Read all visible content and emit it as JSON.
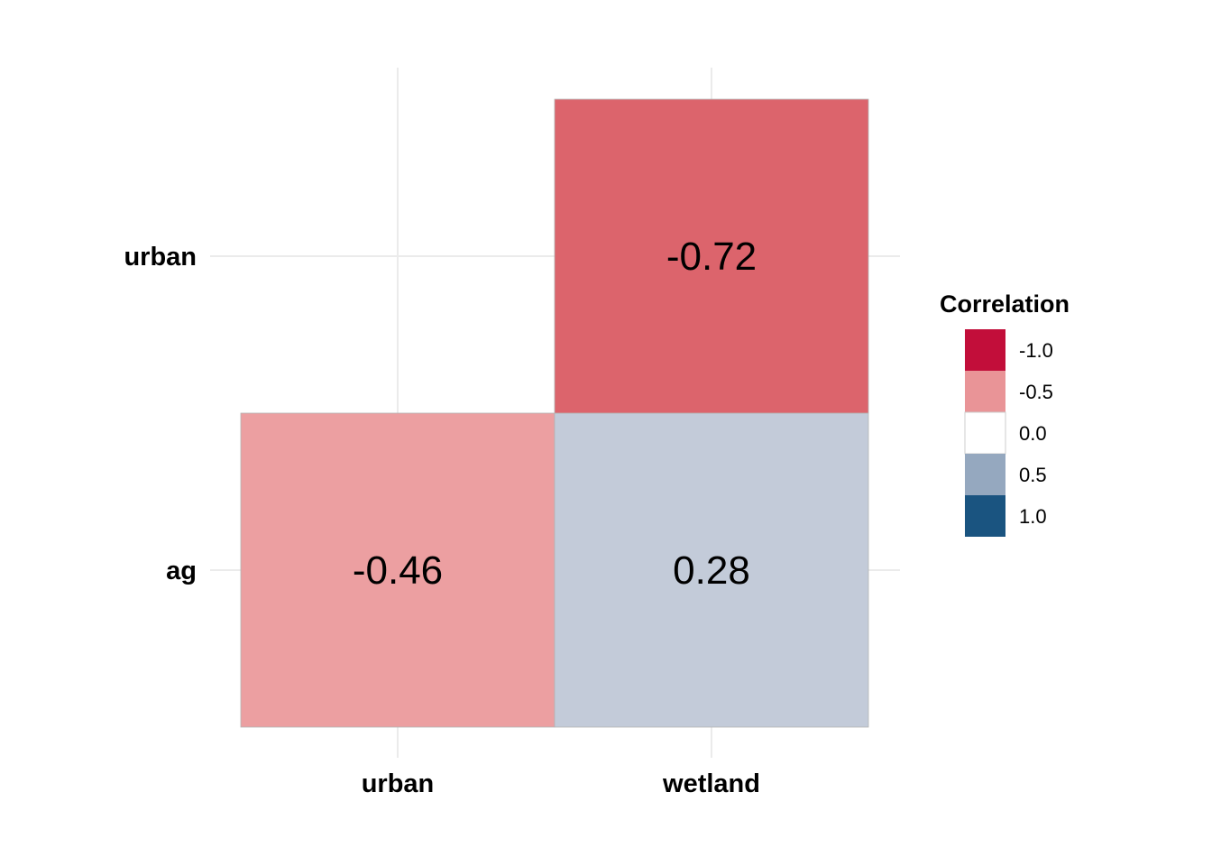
{
  "chart_data": {
    "type": "heatmap",
    "title": "",
    "xlabel": "",
    "ylabel": "",
    "x_categories": [
      "urban",
      "wetland"
    ],
    "y_categories": [
      "ag",
      "urban"
    ],
    "cells": [
      {
        "x": "urban",
        "y": "ag",
        "value": -0.46,
        "label": "-0.46"
      },
      {
        "x": "wetland",
        "y": "ag",
        "value": 0.28,
        "label": "0.28"
      },
      {
        "x": "wetland",
        "y": "urban",
        "value": -0.72,
        "label": "-0.72"
      }
    ],
    "legend": {
      "title": "Correlation",
      "position": "right",
      "entries": [
        {
          "label": "-1.0",
          "value": -1.0,
          "color": "#C20E3A"
        },
        {
          "label": "-0.5",
          "value": -0.5,
          "color": "#E99497"
        },
        {
          "label": "0.0",
          "value": 0.0,
          "color": "#FFFFFF"
        },
        {
          "label": "0.5",
          "value": 0.5,
          "color": "#95A8BF"
        },
        {
          "label": "1.0",
          "value": 1.0,
          "color": "#1A5480"
        }
      ]
    },
    "cell_colors": {
      "-0.46": "#EC9FA1",
      "0.28": "#C3CBD9",
      "-0.72": "#DC646C"
    },
    "grid": true
  }
}
